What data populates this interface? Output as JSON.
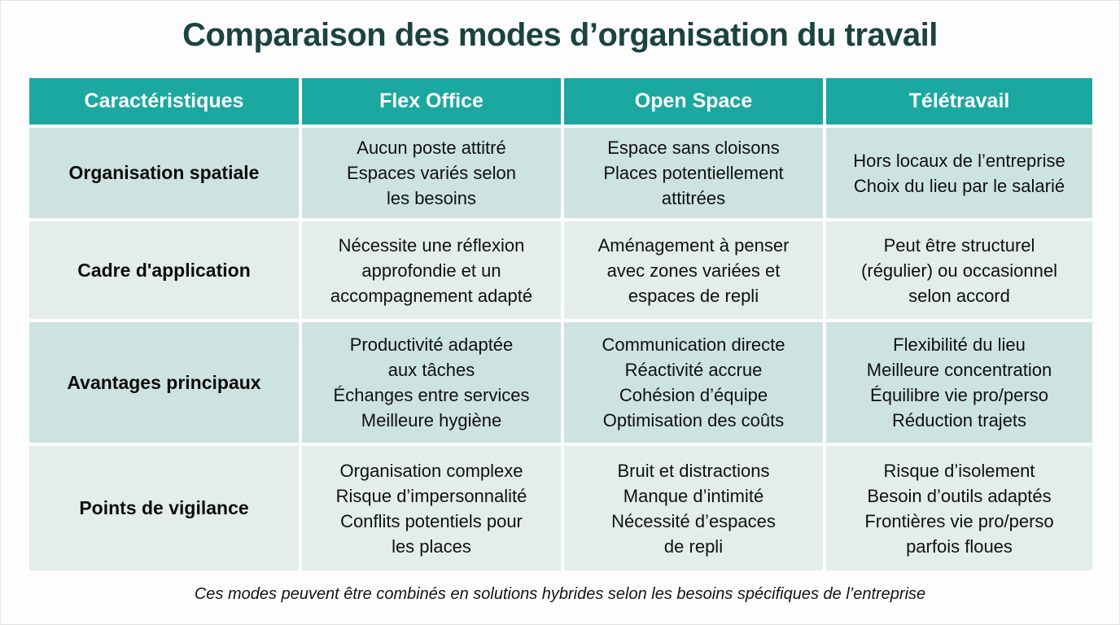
{
  "title": "Comparaison des modes d’organisation du travail",
  "footnote": "Ces modes peuvent être combinés en solutions hybrides selon les besoins spécifiques de l’entreprise",
  "colors": {
    "header_bg": "#1aa8a0",
    "row_teal_bg": "#cde3df",
    "row_pale_bg": "#e3eeec",
    "title_text": "#1b4340",
    "header_text": "#ffffff",
    "body_text": "#101010"
  },
  "table": {
    "headers": [
      "Caractéristiques",
      "Flex Office",
      "Open Space",
      "Télétravail"
    ],
    "rows": [
      {
        "label": "Organisation spatiale",
        "cells": [
          "Aucun poste attitré\nEspaces variés selon\nles besoins",
          "Espace sans cloisons\nPlaces potentiellement\nattitrées",
          "Hors locaux de l’entreprise\nChoix du lieu par le salarié"
        ]
      },
      {
        "label": "Cadre d'application",
        "cells": [
          "Nécessite une réflexion\napprofondie et un\naccompagnement adapté",
          "Aménagement à penser\navec zones variées et\nespaces de repli",
          "Peut être structurel\n(régulier) ou occasionnel\nselon accord"
        ]
      },
      {
        "label": "Avantages principaux",
        "cells": [
          "Productivité adaptée\naux tâches\nÉchanges entre services\nMeilleure hygiène",
          "Communication directe\nRéactivité accrue\nCohésion d’équipe\nOptimisation des coûts",
          "Flexibilité du lieu\nMeilleure concentration\nÉquilibre vie pro/perso\nRéduction trajets"
        ]
      },
      {
        "label": "Points de vigilance",
        "cells": [
          "Organisation complexe\nRisque d’impersonnalité\nConflits potentiels pour\nles places",
          "Bruit et distractions\nManque d’intimité\nNécessité d’espaces\nde repli",
          "Risque d’isolement\nBesoin d’outils adaptés\nFrontières vie pro/perso\nparfois floues"
        ]
      }
    ]
  }
}
